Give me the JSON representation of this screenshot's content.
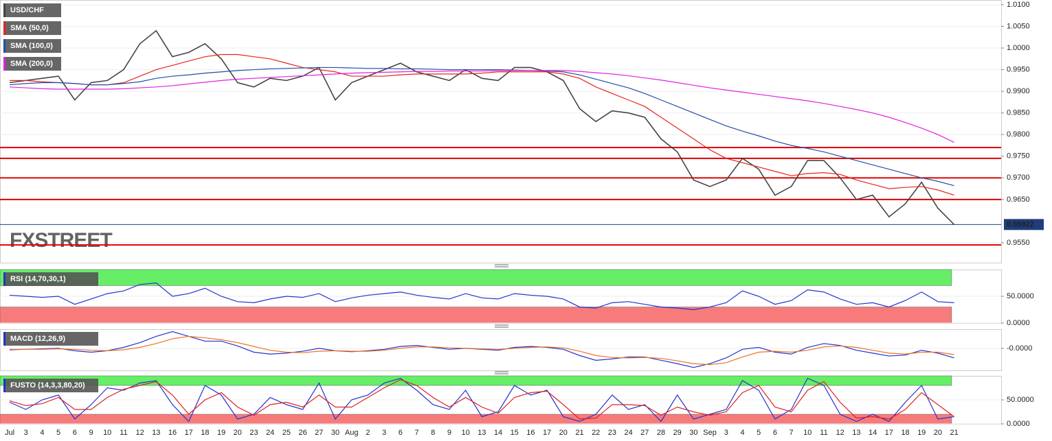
{
  "chart_data": [
    {
      "type": "line",
      "grid": true,
      "watermark": "FXSTREET",
      "categories": [
        "Jul",
        "3",
        "4",
        "5",
        "6",
        "9",
        "10",
        "11",
        "12",
        "13",
        "16",
        "17",
        "18",
        "19",
        "20",
        "23",
        "24",
        "25",
        "26",
        "27",
        "30",
        "Aug",
        "2",
        "3",
        "6",
        "7",
        "8",
        "9",
        "10",
        "13",
        "14",
        "15",
        "16",
        "17",
        "20",
        "21",
        "22",
        "23",
        "24",
        "27",
        "28",
        "29",
        "30",
        "Sep",
        "3",
        "4",
        "5",
        "6",
        "7",
        "10",
        "11",
        "12",
        "13",
        "14",
        "17",
        "18",
        "19",
        "20",
        "21"
      ],
      "series": [
        {
          "name": "USD/CHF",
          "color": "#444444",
          "values": [
            0.992,
            0.9925,
            0.993,
            0.9935,
            0.988,
            0.992,
            0.9925,
            0.995,
            1.001,
            1.004,
            0.998,
            0.999,
            1.001,
            0.9975,
            0.992,
            0.991,
            0.993,
            0.9925,
            0.9935,
            0.9955,
            0.988,
            0.992,
            0.9935,
            0.995,
            0.9965,
            0.9945,
            0.9935,
            0.9925,
            0.995,
            0.993,
            0.9925,
            0.9955,
            0.9955,
            0.9945,
            0.9925,
            0.986,
            0.983,
            0.9855,
            0.985,
            0.984,
            0.979,
            0.976,
            0.9695,
            0.968,
            0.9695,
            0.9745,
            0.972,
            0.966,
            0.968,
            0.974,
            0.974,
            0.97,
            0.965,
            0.966,
            0.961,
            0.964,
            0.969,
            0.963,
            0.9592
          ]
        },
        {
          "name": "SMA (50,0)",
          "color": "#e8241c",
          "values": [
            0.9925,
            0.9925,
            0.9922,
            0.992,
            0.9918,
            0.9915,
            0.9915,
            0.992,
            0.9935,
            0.995,
            0.996,
            0.997,
            0.998,
            0.9985,
            0.9985,
            0.998,
            0.9975,
            0.9965,
            0.9955,
            0.995,
            0.9945,
            0.9935,
            0.9935,
            0.9935,
            0.9938,
            0.994,
            0.994,
            0.994,
            0.994,
            0.9942,
            0.9945,
            0.9945,
            0.9945,
            0.9945,
            0.994,
            0.993,
            0.991,
            0.9895,
            0.988,
            0.9865,
            0.984,
            0.9815,
            0.979,
            0.9765,
            0.9745,
            0.9735,
            0.9725,
            0.9715,
            0.9705,
            0.971,
            0.9712,
            0.9708,
            0.9695,
            0.9685,
            0.9675,
            0.9678,
            0.968,
            0.9672,
            0.966
          ]
        },
        {
          "name": "SMA (100,0)",
          "color": "#1f4fa8",
          "values": [
            0.9915,
            0.9918,
            0.992,
            0.992,
            0.9918,
            0.9915,
            0.9915,
            0.9918,
            0.9922,
            0.993,
            0.9935,
            0.9938,
            0.9942,
            0.9945,
            0.9948,
            0.995,
            0.9952,
            0.9953,
            0.9954,
            0.9955,
            0.9955,
            0.9954,
            0.9953,
            0.9953,
            0.9952,
            0.9952,
            0.9951,
            0.995,
            0.995,
            0.995,
            0.995,
            0.9949,
            0.9948,
            0.9947,
            0.9945,
            0.9938,
            0.9928,
            0.9918,
            0.9908,
            0.9895,
            0.988,
            0.9865,
            0.985,
            0.9835,
            0.982,
            0.9808,
            0.9797,
            0.9785,
            0.9775,
            0.9768,
            0.976,
            0.975,
            0.974,
            0.973,
            0.972,
            0.971,
            0.97,
            0.9692,
            0.9682
          ]
        },
        {
          "name": "SMA (200,0)",
          "color": "#e020e0",
          "values": [
            0.991,
            0.9908,
            0.9906,
            0.9905,
            0.9905,
            0.9905,
            0.9905,
            0.9906,
            0.9908,
            0.991,
            0.9913,
            0.9917,
            0.9921,
            0.9925,
            0.9928,
            0.993,
            0.9932,
            0.9934,
            0.9936,
            0.9938,
            0.994,
            0.9942,
            0.9943,
            0.9944,
            0.9945,
            0.9946,
            0.9946,
            0.9947,
            0.9947,
            0.9947,
            0.9948,
            0.9948,
            0.9948,
            0.9948,
            0.9948,
            0.9946,
            0.9943,
            0.994,
            0.9936,
            0.9931,
            0.9926,
            0.992,
            0.9914,
            0.9908,
            0.9903,
            0.9898,
            0.9893,
            0.9888,
            0.9883,
            0.9878,
            0.9872,
            0.9865,
            0.9858,
            0.985,
            0.984,
            0.9828,
            0.9815,
            0.98,
            0.9782
          ]
        }
      ],
      "levels": [
        0.977,
        0.9745,
        0.97,
        0.965,
        0.9545
      ],
      "level_color": "#e00000",
      "last_price": 0.95922,
      "ylim": [
        0.9504,
        1.0111
      ],
      "yticks": [
        {
          "value": 1.01,
          "label": "1.0100"
        },
        {
          "value": 1.005,
          "label": "1.0050"
        },
        {
          "value": 1.0,
          "label": "1.0000"
        },
        {
          "value": 0.995,
          "label": "0.9950"
        },
        {
          "value": 0.99,
          "label": "0.9900"
        },
        {
          "value": 0.985,
          "label": "0.9850"
        },
        {
          "value": 0.98,
          "label": "0.9800"
        },
        {
          "value": 0.975,
          "label": "0.9750"
        },
        {
          "value": 0.97,
          "label": "0.9700"
        },
        {
          "value": 0.965,
          "label": "0.9650"
        },
        {
          "value": 0.955,
          "label": "0.9550"
        }
      ]
    },
    {
      "type": "line",
      "grid": true,
      "series": [
        {
          "name": "RSI (14,70,30,1)",
          "color": "#2233cc",
          "values": [
            52,
            50,
            48,
            50,
            35,
            45,
            55,
            60,
            72,
            75,
            50,
            55,
            65,
            50,
            40,
            38,
            45,
            50,
            48,
            55,
            40,
            47,
            52,
            55,
            58,
            52,
            48,
            45,
            55,
            47,
            45,
            55,
            52,
            50,
            45,
            30,
            28,
            38,
            40,
            35,
            30,
            28,
            25,
            30,
            38,
            60,
            50,
            35,
            42,
            62,
            58,
            45,
            35,
            38,
            30,
            42,
            58,
            40,
            38
          ]
        }
      ],
      "bands": [
        {
          "from": 70,
          "to": 100,
          "color": "#66ee66"
        },
        {
          "from": 0,
          "to": 30,
          "color": "#f77b7b"
        }
      ],
      "ylim": [
        0,
        100
      ],
      "yticks": [
        {
          "value": 50,
          "label": "50.0000"
        },
        {
          "value": 0,
          "label": "0.0000"
        }
      ]
    },
    {
      "type": "line",
      "grid": true,
      "series": [
        {
          "name": "MACD (12,26,9)",
          "color": "#2233cc",
          "values": [
            -0.0003,
            -0.0002,
            -0.0001,
            0.0,
            -0.0005,
            -0.0008,
            -0.0005,
            0.0002,
            0.0012,
            0.0025,
            0.0035,
            0.0025,
            0.0015,
            0.0015,
            0.0005,
            -0.0008,
            -0.0012,
            -0.001,
            -0.0006,
            0.0,
            -0.0005,
            -0.0007,
            -0.0005,
            -0.0002,
            0.0004,
            0.0006,
            0.0002,
            -0.0002,
            0.0,
            -0.0002,
            -0.0004,
            0.0002,
            0.0004,
            0.0002,
            -0.0002,
            -0.0015,
            -0.0025,
            -0.0022,
            -0.0018,
            -0.0018,
            -0.0025,
            -0.0032,
            -0.004,
            -0.0032,
            -0.002,
            -0.0002,
            0.0002,
            -0.0008,
            -0.0012,
            0.0002,
            0.001,
            0.0006,
            -0.0004,
            -0.001,
            -0.0016,
            -0.0014,
            -0.0004,
            -0.001,
            -0.002
          ]
        },
        {
          "color": "#f07020",
          "values": [
            -0.0002,
            -0.0002,
            -0.0002,
            -0.0001,
            -0.0002,
            -0.0004,
            -0.0005,
            -0.0003,
            0.0002,
            0.001,
            0.002,
            0.0025,
            0.0022,
            0.0018,
            0.0012,
            0.0004,
            -0.0004,
            -0.0008,
            -0.0009,
            -0.0006,
            -0.0005,
            -0.0006,
            -0.0006,
            -0.0004,
            0.0,
            0.0003,
            0.0003,
            0.0001,
            0.0,
            -0.0001,
            -0.0002,
            0.0,
            0.0002,
            0.0003,
            0.0001,
            -0.0006,
            -0.0015,
            -0.0019,
            -0.002,
            -0.0019,
            -0.0021,
            -0.0026,
            -0.0032,
            -0.0034,
            -0.003,
            -0.0018,
            -0.0008,
            -0.0006,
            -0.0008,
            -0.0004,
            0.0003,
            0.0005,
            0.0002,
            -0.0004,
            -0.001,
            -0.0012,
            -0.0008,
            -0.0008,
            -0.0013
          ]
        }
      ],
      "ylim": [
        -0.0046,
        0.004
      ],
      "yticks": [
        {
          "value": 0,
          "label": "-0.0000"
        }
      ]
    },
    {
      "type": "line",
      "grid": true,
      "series": [
        {
          "name": "FUSTO (14,3,3,80,20)",
          "color": "#2233cc",
          "values": [
            45,
            30,
            50,
            60,
            10,
            40,
            75,
            70,
            85,
            90,
            40,
            5,
            80,
            60,
            10,
            20,
            55,
            40,
            30,
            85,
            10,
            50,
            60,
            85,
            95,
            70,
            40,
            30,
            70,
            15,
            25,
            80,
            60,
            70,
            15,
            5,
            20,
            60,
            30,
            40,
            5,
            60,
            10,
            20,
            30,
            90,
            70,
            10,
            30,
            95,
            80,
            20,
            5,
            20,
            5,
            45,
            80,
            10,
            15
          ]
        },
        {
          "color": "#e02020",
          "values": [
            48,
            38,
            42,
            55,
            30,
            30,
            55,
            72,
            80,
            88,
            60,
            20,
            50,
            65,
            35,
            18,
            40,
            45,
            35,
            60,
            35,
            35,
            55,
            75,
            92,
            80,
            55,
            35,
            55,
            35,
            22,
            55,
            65,
            68,
            40,
            10,
            12,
            40,
            40,
            38,
            18,
            35,
            25,
            18,
            25,
            65,
            80,
            35,
            25,
            70,
            88,
            45,
            12,
            15,
            10,
            30,
            65,
            40,
            15
          ]
        }
      ],
      "bands": [
        {
          "from": 80,
          "to": 100,
          "color": "#66ee66"
        },
        {
          "from": 0,
          "to": 20,
          "color": "#f77b7b"
        }
      ],
      "ylim": [
        0,
        100
      ],
      "yticks": [
        {
          "value": 50,
          "label": "50.0000"
        },
        {
          "value": 0,
          "label": "0.0000"
        }
      ]
    }
  ]
}
